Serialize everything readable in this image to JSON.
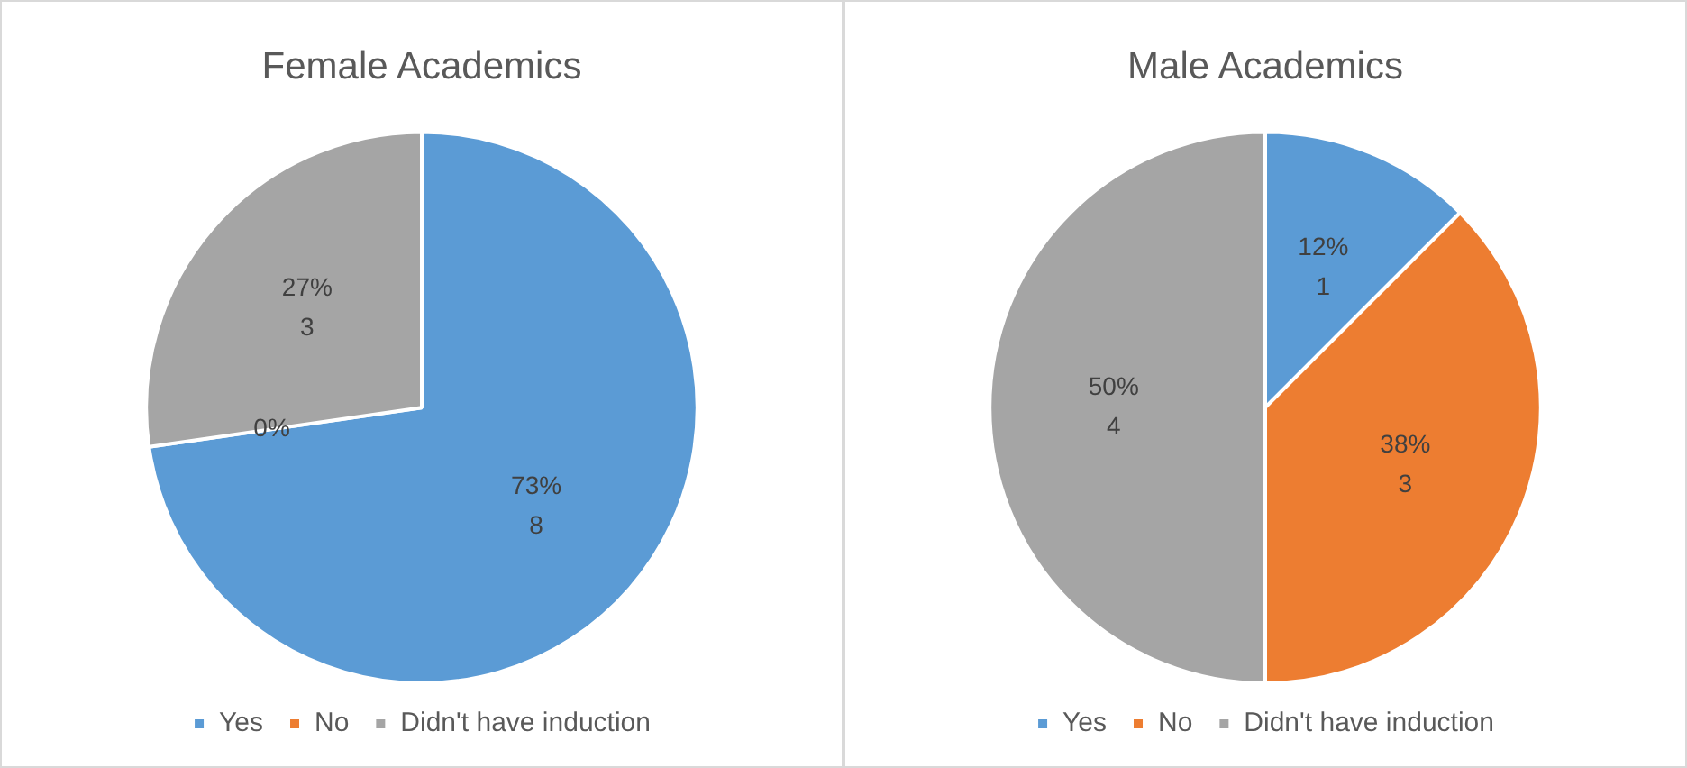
{
  "chart_data": [
    {
      "type": "pie",
      "title": "Female Academics",
      "categories": [
        "Yes",
        "No",
        "Didn't have induction"
      ],
      "values": [
        8,
        0,
        3
      ],
      "colors": [
        "#5b9bd5",
        "#ed7d31",
        "#a5a5a5"
      ],
      "value_labels": [
        "73%\n8",
        "0%",
        "27%\n3"
      ],
      "legend": "bottom"
    },
    {
      "type": "pie",
      "title": "Male Academics",
      "categories": [
        "Yes",
        "No",
        "Didn't have induction"
      ],
      "values": [
        1,
        3,
        4
      ],
      "colors": [
        "#5b9bd5",
        "#ed7d31",
        "#a5a5a5"
      ],
      "value_labels": [
        "12%\n1",
        "38%\n3",
        "50%\n4"
      ],
      "legend": "bottom"
    }
  ]
}
